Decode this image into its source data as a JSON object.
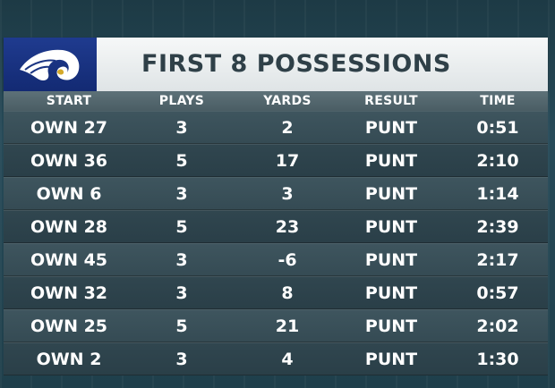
{
  "title": "FIRST 8 POSSESSIONS",
  "team_logo": {
    "icon": "rams-horn-icon",
    "colors": {
      "background": "#1a3482",
      "horn": "#ffffff"
    }
  },
  "columns": [
    "START",
    "PLAYS",
    "YARDS",
    "RESULT",
    "TIME"
  ],
  "rows": [
    [
      "OWN 27",
      "3",
      "2",
      "PUNT",
      "0:51"
    ],
    [
      "OWN 36",
      "5",
      "17",
      "PUNT",
      "2:10"
    ],
    [
      "OWN 6",
      "3",
      "3",
      "PUNT",
      "1:14"
    ],
    [
      "OWN 28",
      "5",
      "23",
      "PUNT",
      "2:39"
    ],
    [
      "OWN 45",
      "3",
      "-6",
      "PUNT",
      "2:17"
    ],
    [
      "OWN 32",
      "3",
      "8",
      "PUNT",
      "0:57"
    ],
    [
      "OWN 25",
      "5",
      "21",
      "PUNT",
      "2:02"
    ],
    [
      "OWN 2",
      "3",
      "4",
      "PUNT",
      "1:30"
    ]
  ]
}
